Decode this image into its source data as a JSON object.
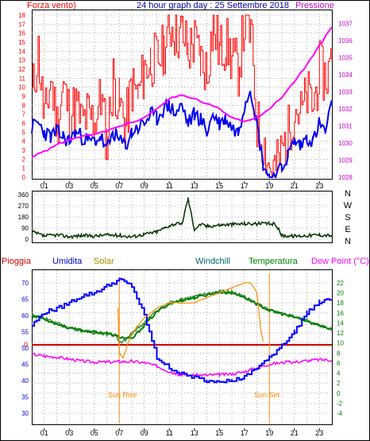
{
  "header": {
    "left_label": "Forza vento)",
    "title": "24 hour graph day : 25 Settembre 2018",
    "right_label": "Pressione"
  },
  "colors": {
    "wind": "#ff0000",
    "gust_avg": "#0000ee",
    "pressure": "#ff00ff",
    "direction": "#003300",
    "humidity": "#0000ff",
    "solar": "#ff8800",
    "windchill": "#006600",
    "temperature": "#008000",
    "dewpoint": "#ff00ff",
    "rain": "#cc0000",
    "grid": "#777777",
    "axis_purple": "#cc00cc"
  },
  "hour_ticks": [
    "01",
    "03",
    "05",
    "07",
    "09",
    "11",
    "13",
    "15",
    "17",
    "19",
    "21",
    "23"
  ],
  "wind_chart": {
    "y_left_ticks": [
      "0",
      "1",
      "2",
      "3",
      "4",
      "5",
      "6",
      "7",
      "8",
      "9",
      "10",
      "11",
      "12",
      "13",
      "14",
      "15",
      "16",
      "17",
      "18"
    ],
    "y_right_ticks": [
      "1028",
      "1029",
      "1030",
      "1031",
      "1032",
      "1033",
      "1034",
      "1035",
      "1036",
      "1037"
    ]
  },
  "dir_chart": {
    "y_left_ticks": [
      "0",
      "90",
      "180",
      "270",
      "360"
    ],
    "compass": [
      "N",
      "W",
      "S",
      "E",
      "N"
    ]
  },
  "temp_chart": {
    "legend": {
      "rain": "Pioggia",
      "humidity": "Umidita",
      "solar": "Solar",
      "windchill": "Windchill",
      "temperature": "Temperatura",
      "dewpoint": "Dew Point (°C)"
    },
    "y_left_ticks": [
      "30",
      "35",
      "40",
      "45",
      "50",
      "55",
      "60",
      "65",
      "70"
    ],
    "rain_zero": "0",
    "y_right_ticks": [
      "-4",
      "-2",
      "0",
      "2",
      "4",
      "6",
      "8",
      "10",
      "12",
      "14",
      "16",
      "18",
      "20",
      "22"
    ],
    "sunrise_label": "Sun Rise",
    "sunset_label": "Sun Set"
  },
  "chart_data": [
    {
      "type": "line",
      "title": "24 hour graph day : 25 Settembre 2018",
      "xlabel": "",
      "x_unit": "hour",
      "xlim": [
        0,
        24
      ],
      "ylim": [
        0,
        18
      ],
      "y2lim": [
        1028,
        1037.5
      ],
      "series": [
        {
          "name": "Forza vento)",
          "axis": "left",
          "x": [
            0,
            0.5,
            1,
            1.5,
            2,
            2.5,
            3,
            3.5,
            4,
            4.5,
            5,
            5.5,
            6,
            6.5,
            7,
            7.5,
            8,
            8.5,
            9,
            9.5,
            10,
            10.5,
            11,
            11.5,
            12,
            12.5,
            13,
            13.5,
            14,
            14.5,
            15,
            15.5,
            16,
            16.5,
            17,
            17.5,
            18,
            18.5,
            19,
            19.5,
            20,
            20.5,
            21,
            21.5,
            22,
            22.5,
            23,
            23.5,
            24
          ],
          "values": [
            9,
            14,
            6,
            11,
            6,
            10,
            7,
            8,
            6,
            7,
            6,
            9,
            4,
            11,
            8,
            6,
            10,
            9,
            12,
            13,
            13,
            14,
            17,
            16,
            16,
            14,
            15,
            13,
            12,
            17,
            14,
            15,
            13,
            12,
            17,
            16,
            6,
            4,
            1,
            1,
            3,
            5,
            8,
            7,
            9,
            8,
            12,
            11,
            13
          ]
        },
        {
          "name": "",
          "axis": "left",
          "x": [
            0,
            0.5,
            1,
            1.5,
            2,
            2.5,
            3,
            3.5,
            4,
            4.5,
            5,
            5.5,
            6,
            6.5,
            7,
            7.5,
            8,
            8.5,
            9,
            9.5,
            10,
            10.5,
            11,
            11.5,
            12,
            12.5,
            13,
            13.5,
            14,
            14.5,
            15,
            15.5,
            16,
            16.5,
            17,
            17.5,
            18,
            18.5,
            19,
            19.5,
            20,
            20.5,
            21,
            21.5,
            22,
            22.5,
            23,
            23.5,
            24
          ],
          "values": [
            5.5,
            6,
            5,
            4.5,
            5,
            4.5,
            4,
            5,
            4.5,
            4,
            4,
            4.5,
            3,
            5,
            4,
            3.5,
            5,
            5.5,
            6,
            7,
            6.5,
            7.5,
            8,
            7,
            8,
            6,
            7,
            6.5,
            5,
            7,
            6,
            6.5,
            5.5,
            5,
            8,
            10,
            6,
            1.5,
            0,
            0,
            1,
            2.5,
            4,
            3.5,
            4.5,
            4,
            6,
            5,
            8
          ]
        },
        {
          "name": "Pressione",
          "axis": "right",
          "x": [
            0,
            1,
            2,
            3,
            4,
            5,
            6,
            7,
            8,
            9,
            10,
            11,
            12,
            13,
            14,
            15,
            16,
            17,
            18,
            19,
            20,
            21,
            22,
            23,
            24
          ],
          "values": [
            1029.2,
            1029.5,
            1029.9,
            1030.2,
            1030.4,
            1030.5,
            1030.7,
            1031.0,
            1031.2,
            1031.5,
            1032.0,
            1032.6,
            1032.8,
            1032.6,
            1032.3,
            1032.0,
            1031.5,
            1031.3,
            1031.5,
            1032.0,
            1032.7,
            1033.6,
            1034.6,
            1035.7,
            1036.8
          ]
        }
      ]
    },
    {
      "type": "line",
      "xlim": [
        0,
        24
      ],
      "ylim": [
        0,
        360
      ],
      "series": [
        {
          "name": "",
          "x": [
            0,
            1,
            2,
            3,
            4,
            5,
            6,
            7,
            8,
            9,
            10,
            11,
            11.5,
            12,
            12.5,
            13,
            13.5,
            14,
            15,
            16,
            17,
            18,
            19,
            19.5,
            20,
            21,
            22,
            23,
            24
          ],
          "values": [
            60,
            25,
            35,
            20,
            30,
            25,
            35,
            30,
            20,
            40,
            60,
            110,
            125,
            120,
            330,
            80,
            120,
            105,
            115,
            120,
            125,
            125,
            125,
            120,
            30,
            25,
            30,
            35,
            30
          ]
        }
      ]
    },
    {
      "type": "line",
      "xlim": [
        0,
        24
      ],
      "ylim": [
        29,
        72
      ],
      "y2lim": [
        -5,
        23
      ],
      "annotations": [
        "Sun Rise",
        "Sun Set",
        "0"
      ],
      "series": [
        {
          "name": "Umidita",
          "axis": "left",
          "x": [
            0,
            1,
            2,
            3,
            4,
            5,
            6,
            7,
            8,
            9,
            10,
            11,
            12,
            13,
            14,
            15,
            16,
            17,
            18,
            19,
            20,
            21,
            22,
            23,
            24
          ],
          "values": [
            57,
            61,
            62,
            64,
            66,
            67,
            69,
            71,
            69,
            60,
            47,
            44,
            42,
            41,
            40,
            40,
            40,
            41,
            44,
            47,
            51,
            55,
            61,
            64,
            65
          ]
        },
        {
          "name": "Solar",
          "axis": "right",
          "x": [
            0,
            6.5,
            6.9,
            7.0,
            7.3,
            8,
            9,
            10,
            11,
            12,
            13,
            14,
            15,
            16,
            17,
            17.5,
            18,
            18.3,
            18.6,
            19,
            24
          ],
          "values": [
            null,
            null,
            17,
            8,
            7,
            12,
            15,
            17,
            18,
            18,
            18,
            19,
            20,
            21,
            22,
            22,
            20,
            13,
            9,
            null,
            null
          ]
        },
        {
          "name": "Windchill",
          "axis": "right",
          "x": [
            0,
            1,
            2,
            3,
            4,
            5,
            6,
            6.7,
            7,
            7.5,
            8,
            9,
            10,
            11,
            12,
            13,
            14,
            15,
            16,
            17,
            18,
            19,
            20,
            21,
            22,
            23,
            24
          ],
          "values": [
            15.5,
            15,
            14,
            13,
            12.5,
            12,
            11.8,
            11.5,
            10,
            10.5,
            12,
            14,
            16.5,
            18,
            18.8,
            19.2,
            19.8,
            20.3,
            20.2,
            19.2,
            17.8,
            16.5,
            15.8,
            15.2,
            14.5,
            13.5,
            12.8
          ]
        },
        {
          "name": "Temperatura",
          "axis": "right",
          "x": [
            0,
            1,
            2,
            3,
            4,
            5,
            6,
            7,
            8,
            9,
            10,
            11,
            12,
            13,
            14,
            15,
            16,
            17,
            18,
            19,
            20,
            21,
            22,
            23,
            24
          ],
          "values": [
            15.5,
            14.8,
            13.8,
            13,
            12.5,
            12.2,
            12,
            11.2,
            10.8,
            13.5,
            16.2,
            17.8,
            18.5,
            19,
            19.6,
            20.1,
            20,
            19.2,
            17.8,
            16.5,
            15.8,
            15.2,
            14.3,
            13.5,
            12.8
          ]
        },
        {
          "name": "Dew Point (°C)",
          "axis": "right",
          "x": [
            0,
            1,
            2,
            3,
            4,
            5,
            6,
            7,
            8,
            9,
            10,
            11,
            12,
            13,
            14,
            15,
            16,
            17,
            18,
            19,
            20,
            21,
            22,
            23,
            24
          ],
          "values": [
            7.8,
            7.4,
            7.2,
            6.8,
            6.4,
            6.2,
            6.2,
            6.3,
            6.3,
            6.1,
            5.4,
            4.3,
            3.6,
            3.6,
            3.6,
            3.7,
            3.8,
            4.3,
            5.1,
            5.8,
            6.1,
            6.2,
            6.5,
            6.7,
            6.6
          ]
        }
      ]
    }
  ]
}
